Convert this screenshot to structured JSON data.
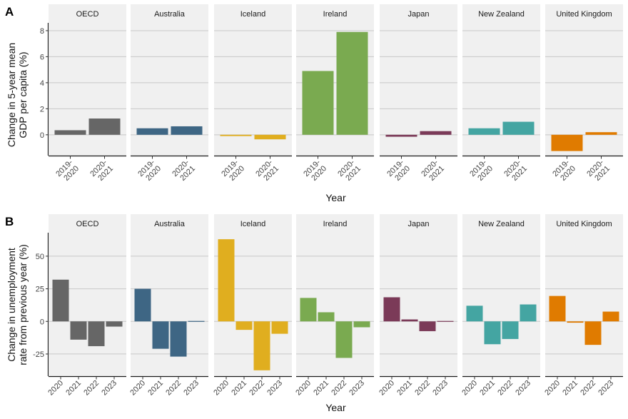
{
  "chart_data": [
    {
      "type": "bar",
      "panel_label": "A",
      "ylabel_lines": [
        "Change in 5-year mean",
        "GDP per capita (%)"
      ],
      "xlabel": "Year",
      "categories": [
        "2019-\n2020",
        "2020-\n2021"
      ],
      "ylim": [
        -1.6,
        8.6
      ],
      "yticks": [
        0,
        2,
        4,
        6,
        8
      ],
      "series": [
        {
          "name": "OECD",
          "color": "#666666",
          "values": [
            0.35,
            1.25
          ]
        },
        {
          "name": "Australia",
          "color": "#3e6684",
          "values": [
            0.5,
            0.65
          ]
        },
        {
          "name": "Iceland",
          "color": "#e0ae1f",
          "values": [
            -0.1,
            -0.35
          ]
        },
        {
          "name": "Ireland",
          "color": "#7aaa50",
          "values": [
            4.9,
            7.9
          ]
        },
        {
          "name": "Japan",
          "color": "#7b3a58",
          "values": [
            -0.15,
            0.28
          ]
        },
        {
          "name": "New Zealand",
          "color": "#44a5a2",
          "values": [
            0.5,
            1.0
          ]
        },
        {
          "name": "United Kingdom",
          "color": "#e07b00",
          "values": [
            -1.25,
            0.2
          ]
        }
      ]
    },
    {
      "type": "bar",
      "panel_label": "B",
      "ylabel_lines": [
        "Change in unemployment",
        "rate from previous year (%)"
      ],
      "xlabel": "Year",
      "categories": [
        "2020",
        "2021",
        "2022",
        "2023"
      ],
      "ylim": [
        -42,
        68
      ],
      "yticks": [
        -25,
        0,
        25,
        50
      ],
      "series": [
        {
          "name": "OECD",
          "color": "#666666",
          "values": [
            32,
            -14,
            -19,
            -4
          ]
        },
        {
          "name": "Australia",
          "color": "#3e6684",
          "values": [
            25,
            -21,
            -27,
            -0.5
          ]
        },
        {
          "name": "Iceland",
          "color": "#e0ae1f",
          "values": [
            63,
            -6.5,
            -37.5,
            -9.5
          ]
        },
        {
          "name": "Ireland",
          "color": "#7aaa50",
          "values": [
            18,
            7,
            -28,
            -4.5
          ]
        },
        {
          "name": "Japan",
          "color": "#7b3a58",
          "values": [
            18.5,
            1.5,
            -7.5,
            0
          ]
        },
        {
          "name": "New Zealand",
          "color": "#44a5a2",
          "values": [
            12,
            -17.5,
            -13.5,
            13
          ]
        },
        {
          "name": "United Kingdom",
          "color": "#e07b00",
          "values": [
            19.5,
            -1,
            -18,
            7.5
          ]
        }
      ]
    }
  ]
}
